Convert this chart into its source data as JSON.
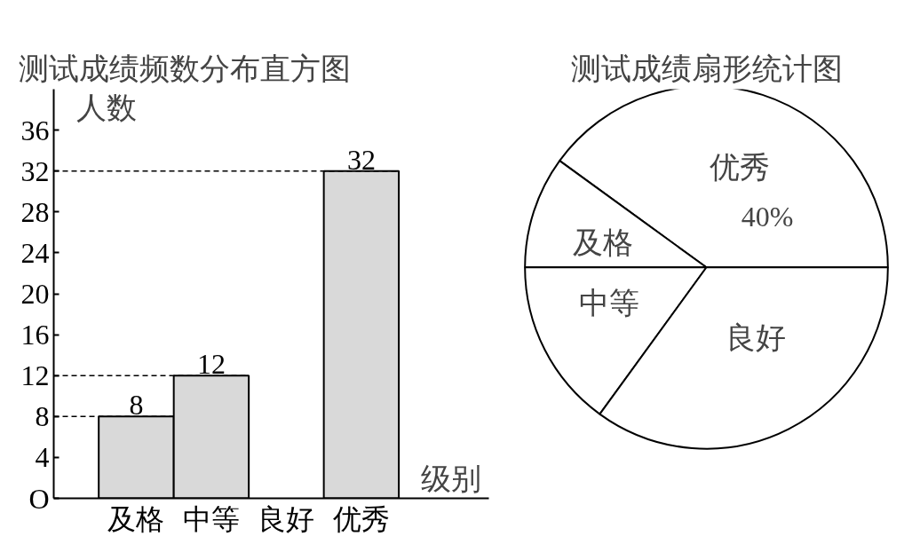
{
  "chart_data": [
    {
      "type": "bar",
      "title": "测试成绩频数分布直方图",
      "xlabel": "级别",
      "ylabel": "人数",
      "categories": [
        "及格",
        "中等",
        "良好",
        "优秀"
      ],
      "values": [
        8,
        12,
        null,
        32
      ],
      "colors": [
        "#d9d9d9",
        "#d9d9d9",
        "#d9d9d9",
        "#d9d9d9"
      ],
      "ylim": [
        0,
        40
      ],
      "yticks": [
        {
          "value": 0,
          "label": "O"
        },
        4,
        8,
        12,
        16,
        20,
        24,
        28,
        32,
        36
      ],
      "grid": false,
      "data_labels": true,
      "ref_lines": [
        {
          "axis": "y",
          "value": 8,
          "line_style": "dashed"
        },
        {
          "axis": "y",
          "value": 12,
          "line_style": "dashed"
        },
        {
          "axis": "y",
          "value": 32,
          "line_style": "dashed"
        }
      ]
    },
    {
      "type": "pie",
      "title": "测试成绩扇形统计图",
      "categories": [
        "优秀",
        "及格",
        "中等",
        "良好"
      ],
      "values": [
        40,
        10,
        15,
        35
      ],
      "colors": [
        "#ffffff",
        "#ffffff",
        "#ffffff",
        "#ffffff"
      ],
      "value_labels": [
        "40%",
        null,
        null,
        null
      ]
    }
  ]
}
